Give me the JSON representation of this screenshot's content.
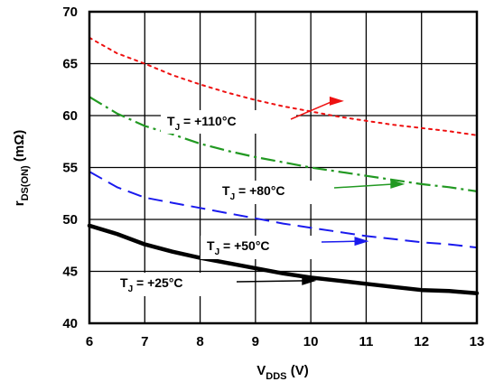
{
  "chart_data": {
    "type": "line",
    "title": "",
    "xlabel": {
      "main": "V",
      "sub": "DDS",
      "suffix": " (V)"
    },
    "ylabel": {
      "main": "r",
      "sub": "DS(ON)",
      "suffix": " (mΩ)"
    },
    "xlim": [
      6,
      13
    ],
    "ylim": [
      40,
      70
    ],
    "x_ticks": [
      6,
      7,
      8,
      9,
      10,
      11,
      12,
      13
    ],
    "y_ticks": [
      40,
      45,
      50,
      55,
      60,
      65,
      70
    ],
    "grid": true,
    "legend": "none",
    "series": [
      {
        "name": "T_J = +110°C",
        "label": {
          "main": "T",
          "sub": "J",
          "suffix": " = +110°C"
        },
        "color": "#ee1111",
        "dash": "dotted",
        "label_anchor": [
          10.6,
          61.4
        ],
        "x": [
          6,
          6.5,
          7,
          7.5,
          8,
          8.5,
          9,
          9.5,
          10,
          10.5,
          11,
          11.5,
          12,
          12.5,
          13
        ],
        "y": [
          67.5,
          66.0,
          65.0,
          63.9,
          63.0,
          62.2,
          61.5,
          60.9,
          60.4,
          59.9,
          59.5,
          59.1,
          58.8,
          58.5,
          58.1
        ]
      },
      {
        "name": "T_J = +80°C",
        "label": {
          "main": "T",
          "sub": "J",
          "suffix": " = +80°C"
        },
        "color": "#229922",
        "dash": "dashdot",
        "label_anchor": [
          11.7,
          53.4
        ],
        "x": [
          6,
          6.5,
          7,
          7.5,
          8,
          8.5,
          9,
          9.5,
          10,
          10.5,
          11,
          11.5,
          12,
          12.5,
          13
        ],
        "y": [
          61.8,
          60.2,
          59.0,
          58.2,
          57.3,
          56.6,
          56.0,
          55.5,
          55.0,
          54.6,
          54.2,
          53.8,
          53.4,
          53.1,
          52.7
        ]
      },
      {
        "name": "T_J = +50°C",
        "label": {
          "main": "T",
          "sub": "J",
          "suffix": " = +50°C"
        },
        "color": "#1a1aee",
        "dash": "dashed",
        "label_anchor": [
          11.05,
          47.9
        ],
        "x": [
          6,
          6.5,
          7,
          7.5,
          8,
          8.5,
          9,
          9.5,
          10,
          10.5,
          11,
          11.5,
          12,
          12.5,
          13
        ],
        "y": [
          54.6,
          53.1,
          52.1,
          51.6,
          51.1,
          50.6,
          50.1,
          49.6,
          49.2,
          48.8,
          48.4,
          48.1,
          47.8,
          47.6,
          47.3
        ]
      },
      {
        "name": "T_J = +25°C",
        "label": {
          "main": "T",
          "sub": "J",
          "suffix": " = +25°C"
        },
        "color": "#000000",
        "dash": "solid",
        "label_anchor": [
          10.1,
          44.1
        ],
        "x": [
          6,
          6.5,
          7,
          7.5,
          8,
          8.5,
          9,
          9.5,
          10,
          10.5,
          11,
          11.5,
          12,
          12.5,
          13
        ],
        "y": [
          49.4,
          48.6,
          47.6,
          46.9,
          46.3,
          45.8,
          45.3,
          44.8,
          44.4,
          44.1,
          43.8,
          43.5,
          43.2,
          43.1,
          42.9
        ]
      }
    ]
  }
}
